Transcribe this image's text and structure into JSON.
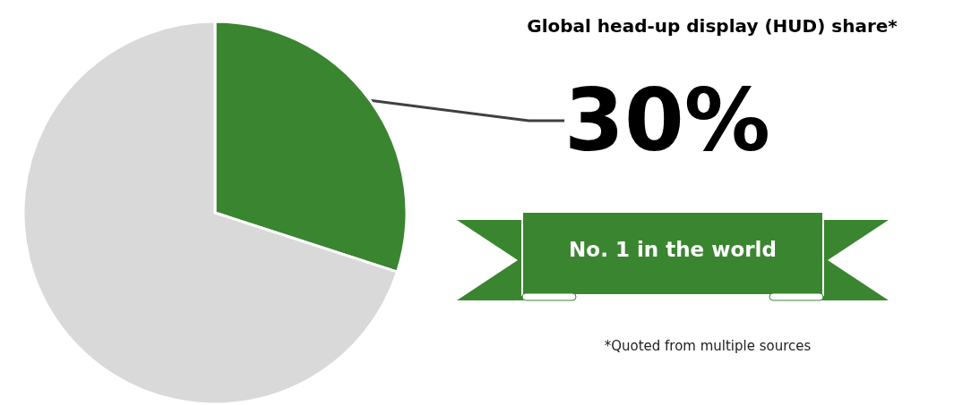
{
  "chart_data": {
    "type": "pie",
    "title": "Global head-up display (HUD) share*",
    "categories": [
      null,
      null
    ],
    "values": [
      30,
      70
    ],
    "colors": [
      "#3a8530",
      "#d9d9d9"
    ],
    "value_labels": [
      "30%",
      null
    ],
    "annotations": [
      "No. 1 in the world",
      "*Quoted from multiple sources"
    ]
  }
}
